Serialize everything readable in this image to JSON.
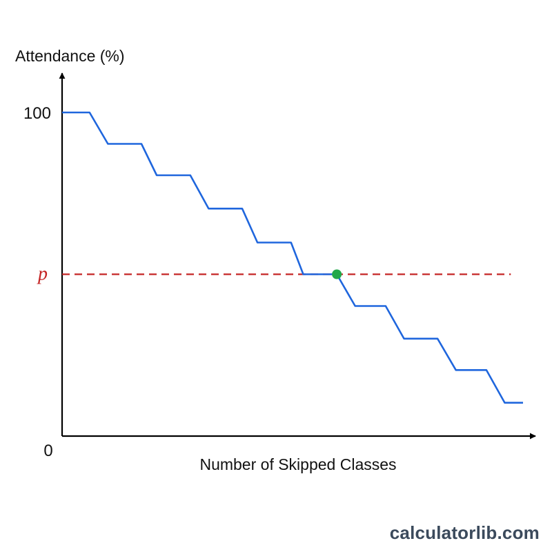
{
  "watermark": "calculatorlib.com",
  "colors": {
    "series": "#1f66dd",
    "threshold": "#c42424",
    "marker": "#22a84a",
    "axis": "#000000"
  },
  "chart_data": {
    "type": "line",
    "title": "",
    "xlabel": "Number of Skipped Classes",
    "ylabel": "Attendance (%)",
    "ylim": [
      0,
      100
    ],
    "xlim": [
      0,
      14.8
    ],
    "y_tick_labels": [
      {
        "value": 100,
        "label": "100"
      },
      {
        "value": 0,
        "label": "0"
      }
    ],
    "x_tick_labels": [],
    "grid": false,
    "legend": "none",
    "series": [
      {
        "x": [
          0,
          0.9,
          1.5,
          2.6,
          3.1,
          4.2,
          4.8,
          5.9,
          6.4,
          7.5,
          7.9,
          8.0,
          9.0,
          9.6,
          10.6,
          11.2,
          12.3,
          12.9,
          13.9,
          14.5,
          15.1
        ],
        "y": [
          100,
          100,
          90.3,
          90.3,
          80.6,
          80.6,
          70.3,
          70.3,
          59.8,
          59.8,
          50.0,
          50.0,
          50.0,
          40.2,
          40.2,
          30.1,
          30.1,
          20.4,
          20.4,
          10.3,
          10.3
        ]
      }
    ],
    "reference_lines": [
      {
        "orientation": "horizontal",
        "y": 50.0,
        "label": "p",
        "style": "dashed",
        "x_end": 14.7
      }
    ],
    "markers": [
      {
        "x": 9.0,
        "y": 50.0
      }
    ]
  }
}
